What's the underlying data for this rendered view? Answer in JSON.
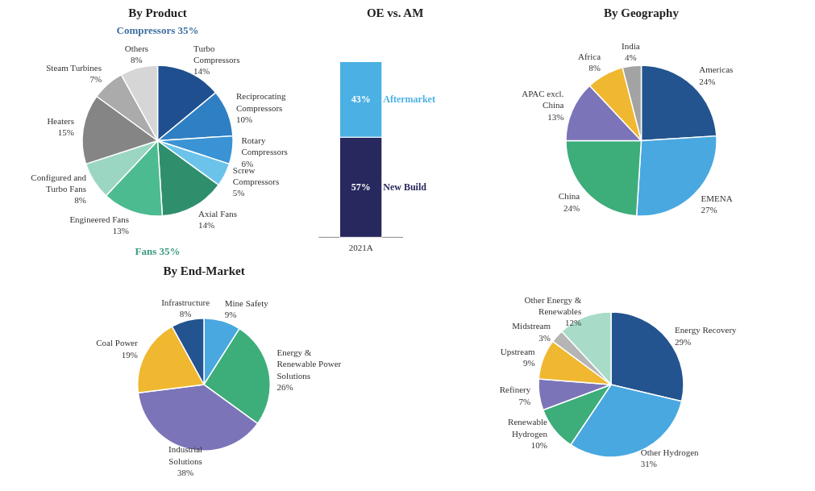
{
  "chart_data": [
    {
      "type": "pie",
      "title": "By Product",
      "categories": [
        "Turbo Compressors",
        "Reciprocating Compressors",
        "Rotary Compressors",
        "Screw Compressors",
        "Axial Fans",
        "Engineered Fans",
        "Configured and Turbo Fans",
        "Heaters",
        "Steam Turbines",
        "Others"
      ],
      "values": [
        14,
        10,
        6,
        5,
        14,
        13,
        8,
        15,
        7,
        8
      ],
      "value_labels": [
        "14%",
        "10%",
        "6%",
        "5%",
        "14%",
        "13%",
        "8%",
        "15%",
        "7%",
        "8%"
      ],
      "colors": [
        "#1f4f8f",
        "#2f7fc4",
        "#3a93d4",
        "#6cc3ea",
        "#2f8f6c",
        "#4dbb90",
        "#9bd6c2",
        "#858585",
        "#ababab",
        "#d6d6d6"
      ],
      "annotations": [
        "Compressors 35%",
        "Fans 35%"
      ]
    },
    {
      "type": "bar",
      "title": "OE vs. AM",
      "stacked": true,
      "data_labels": true,
      "categories": [
        "2021A"
      ],
      "series": [
        {
          "name": "New Build",
          "color": "#27285e",
          "values": [
            57
          ],
          "value_labels": [
            "57%"
          ]
        },
        {
          "name": "Aftermarket",
          "color": "#4bb0e3",
          "values": [
            43
          ],
          "value_labels": [
            "43%"
          ]
        }
      ]
    },
    {
      "type": "pie",
      "title": "By Geography",
      "categories": [
        "Americas",
        "EMENA",
        "China",
        "APAC excl. China",
        "Africa",
        "India"
      ],
      "values": [
        24,
        27,
        24,
        13,
        8,
        4
      ],
      "value_labels": [
        "24%",
        "27%",
        "24%",
        "13%",
        "8%",
        "4%"
      ],
      "colors": [
        "#23548f",
        "#4aa8e0",
        "#3dad7a",
        "#7b74b8",
        "#f0b830",
        "#a3a3a3"
      ]
    },
    {
      "type": "pie",
      "title": "By End-Market",
      "categories": [
        "Mine Safety",
        "Energy & Renewable Power Solutions",
        "Industrial Solutions",
        "Coal Power",
        "Infrastructure"
      ],
      "values": [
        9,
        26,
        38,
        19,
        8
      ],
      "value_labels": [
        "9%",
        "26%",
        "38%",
        "19%",
        "8%"
      ],
      "colors": [
        "#4aa8e0",
        "#3dad7a",
        "#7b74b8",
        "#f0b830",
        "#23548f"
      ]
    },
    {
      "type": "pie",
      "categories": [
        "Energy Recovery",
        "Other Hydrogen",
        "Renewable Hydrogen",
        "Refinery",
        "Upstream",
        "Midstream",
        "Other Energy & Renewables"
      ],
      "values": [
        29,
        31,
        10,
        7,
        9,
        3,
        12
      ],
      "value_labels": [
        "29%",
        "31%",
        "10%",
        "7%",
        "9%",
        "3%",
        "12%"
      ],
      "colors": [
        "#23548f",
        "#4aa8e0",
        "#3dad7a",
        "#7b74b8",
        "#f0b830",
        "#b5b5b5",
        "#a8dcc8"
      ]
    }
  ]
}
